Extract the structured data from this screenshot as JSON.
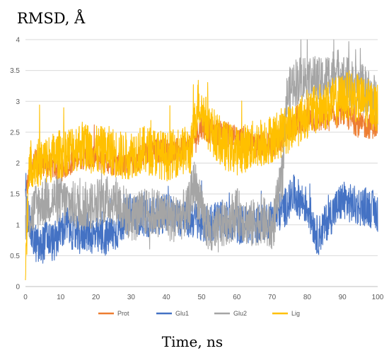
{
  "chart_data": {
    "type": "line",
    "title": "",
    "ylabel": "RMSD, Å",
    "xlabel": "Time, ns",
    "xlim": [
      0,
      100
    ],
    "ylim": [
      0,
      4
    ],
    "x_ticks": [
      0,
      10,
      20,
      30,
      40,
      50,
      60,
      70,
      80,
      90,
      100
    ],
    "y_ticks": [
      0,
      0.5,
      1,
      1.5,
      2,
      2.5,
      3,
      3.5,
      4
    ],
    "grid": "horizontal",
    "legend_position": "bottom",
    "series": [
      {
        "name": "Prot",
        "color": "#ED7D31",
        "noise": 0.13,
        "points": [
          [
            0,
            1.5
          ],
          [
            2,
            2.0
          ],
          [
            5,
            2.0
          ],
          [
            10,
            1.9
          ],
          [
            15,
            2.1
          ],
          [
            20,
            2.1
          ],
          [
            25,
            2.0
          ],
          [
            30,
            2.0
          ],
          [
            35,
            2.2
          ],
          [
            40,
            2.2
          ],
          [
            44,
            2.2
          ],
          [
            47,
            2.3
          ],
          [
            50,
            2.6
          ],
          [
            53,
            2.5
          ],
          [
            56,
            2.5
          ],
          [
            60,
            2.4
          ],
          [
            65,
            2.3
          ],
          [
            70,
            2.3
          ],
          [
            73,
            2.4
          ],
          [
            75,
            2.6
          ],
          [
            80,
            2.7
          ],
          [
            85,
            2.7
          ],
          [
            90,
            2.8
          ],
          [
            95,
            2.6
          ],
          [
            100,
            2.6
          ]
        ]
      },
      {
        "name": "Glu1",
        "color": "#4472C4",
        "noise": 0.2,
        "points": [
          [
            0,
            1.3
          ],
          [
            2,
            0.8
          ],
          [
            4,
            0.6
          ],
          [
            6,
            0.8
          ],
          [
            8,
            0.7
          ],
          [
            10,
            0.9
          ],
          [
            12,
            1.0
          ],
          [
            15,
            0.8
          ],
          [
            17,
            0.9
          ],
          [
            20,
            0.8
          ],
          [
            23,
            0.8
          ],
          [
            26,
            0.9
          ],
          [
            28,
            1.1
          ],
          [
            30,
            1.2
          ],
          [
            35,
            1.1
          ],
          [
            40,
            1.2
          ],
          [
            45,
            1.1
          ],
          [
            48,
            1.1
          ],
          [
            50,
            1.0
          ],
          [
            55,
            1.1
          ],
          [
            60,
            1.0
          ],
          [
            65,
            1.0
          ],
          [
            70,
            1.1
          ],
          [
            74,
            1.3
          ],
          [
            76,
            1.5
          ],
          [
            80,
            1.3
          ],
          [
            83,
            0.8
          ],
          [
            86,
            1.1
          ],
          [
            90,
            1.4
          ],
          [
            94,
            1.3
          ],
          [
            97,
            1.3
          ],
          [
            100,
            1.2
          ]
        ]
      },
      {
        "name": "Glu2",
        "color": "#A5A5A5",
        "noise": 0.25,
        "points": [
          [
            0,
            1.0
          ],
          [
            3,
            1.3
          ],
          [
            6,
            1.4
          ],
          [
            10,
            1.4
          ],
          [
            14,
            1.3
          ],
          [
            18,
            1.3
          ],
          [
            22,
            1.4
          ],
          [
            26,
            1.4
          ],
          [
            30,
            1.1
          ],
          [
            34,
            1.2
          ],
          [
            38,
            1.2
          ],
          [
            42,
            1.1
          ],
          [
            46,
            1.2
          ],
          [
            48,
            1.7
          ],
          [
            50,
            1.2
          ],
          [
            53,
            0.8
          ],
          [
            56,
            1.0
          ],
          [
            60,
            1.2
          ],
          [
            64,
            1.0
          ],
          [
            67,
            1.1
          ],
          [
            70,
            0.9
          ],
          [
            73,
            1.8
          ],
          [
            74,
            3.0
          ],
          [
            76,
            3.3
          ],
          [
            80,
            3.4
          ],
          [
            84,
            3.3
          ],
          [
            88,
            3.5
          ],
          [
            92,
            3.3
          ],
          [
            96,
            3.2
          ],
          [
            100,
            3.0
          ]
        ]
      },
      {
        "name": "Lig",
        "color": "#FFC000",
        "noise": 0.25,
        "points": [
          [
            0,
            0.2
          ],
          [
            1,
            2.0
          ],
          [
            4,
            2.0
          ],
          [
            8,
            2.1
          ],
          [
            12,
            2.2
          ],
          [
            16,
            2.3
          ],
          [
            20,
            2.2
          ],
          [
            24,
            2.2
          ],
          [
            28,
            2.1
          ],
          [
            32,
            2.2
          ],
          [
            36,
            2.2
          ],
          [
            40,
            2.1
          ],
          [
            44,
            2.2
          ],
          [
            47,
            2.2
          ],
          [
            49,
            3.0
          ],
          [
            52,
            2.6
          ],
          [
            56,
            2.3
          ],
          [
            60,
            2.2
          ],
          [
            65,
            2.3
          ],
          [
            70,
            2.4
          ],
          [
            73,
            2.5
          ],
          [
            76,
            2.6
          ],
          [
            80,
            2.8
          ],
          [
            84,
            2.9
          ],
          [
            88,
            3.0
          ],
          [
            92,
            3.1
          ],
          [
            96,
            3.0
          ],
          [
            100,
            2.9
          ]
        ]
      }
    ]
  }
}
